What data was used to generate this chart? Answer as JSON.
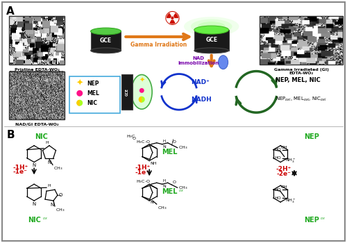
{
  "title_a": "A",
  "title_b": "B",
  "label_pristine": "Pristine EDTA-WO₂",
  "label_gi": "Gamma Irradiated (GI)\nEDTA-WO₂",
  "label_nadgi": "NAD/GI EDTA-WO₂",
  "label_gce": "GCE",
  "label_gamma": "Gamma Irradiation",
  "label_nad": "NAD\nImmobilization",
  "label_nad_plus": "NAD⁺",
  "label_nadh": "NADH",
  "label_nep_mel_nic": "NEP, MEL, NIC",
  "label_ox": "NEPₒₓᴵ, MELₒₓᴵ, NICₒₓᴵ",
  "legend_nep": "NEP",
  "legend_mel": "MEL",
  "legend_nic": "NIC",
  "nic_label": "NIC",
  "nic_ox_label": "NIC",
  "mel_label": "MEL",
  "mel_ox_label": "MEL",
  "nep_label": "NEP",
  "nep_ox_label": "NEP",
  "reaction_nic": "-1H⁺",
  "reaction_nic2": "-1e⁻",
  "reaction_mel": "-1H⁺",
  "reaction_mel2": "-1e⁻",
  "reaction_nep": "-2H⁺",
  "reaction_nep2": "-2e⁻",
  "green_color": "#22aa22",
  "red_color": "#cc0000",
  "purple_color": "#7700aa",
  "blue_color": "#1133cc",
  "orange_color": "#e07818",
  "dark_green": "#226622",
  "glow_green": "#55ee55"
}
